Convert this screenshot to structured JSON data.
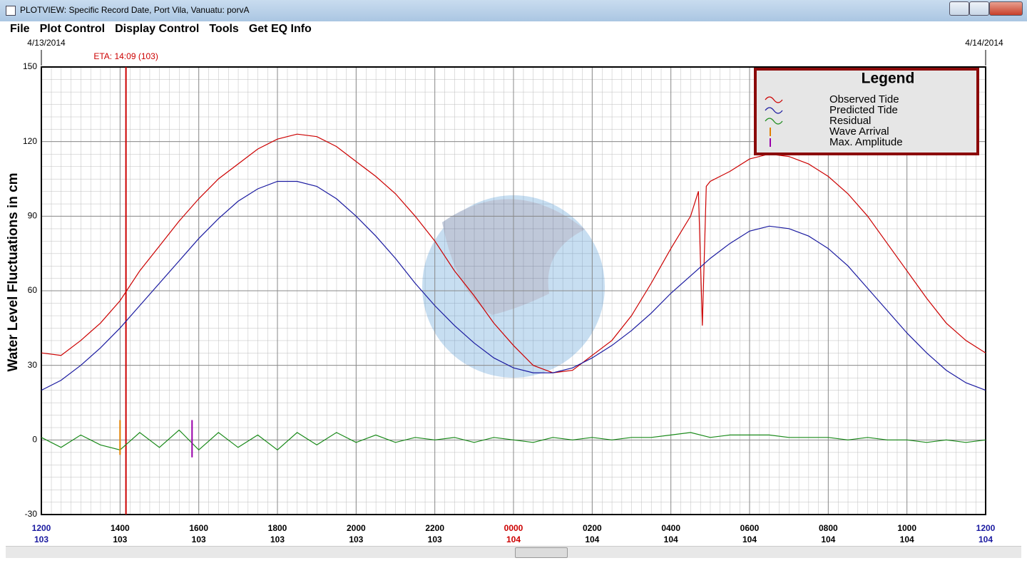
{
  "window": {
    "title": "PLOTVIEW: Specific Record Date, Port Vila, Vanuatu: porvA"
  },
  "menu": [
    "File",
    "Plot Control",
    "Display Control",
    "Tools",
    "Get EQ Info"
  ],
  "chart_data": {
    "type": "line",
    "y_label": "Water Level Fluctuations in cm",
    "date_left": "4/13/2014",
    "date_right": "4/14/2014",
    "annotation": {
      "text": "ETA: 14:09 (103)",
      "x": 2.15,
      "color": "#cc0000"
    },
    "xlim": [
      0,
      24
    ],
    "xticks": [
      {
        "value": 0,
        "label": "1200"
      },
      {
        "value": 2,
        "label": "1400"
      },
      {
        "value": 4,
        "label": "1600"
      },
      {
        "value": 6,
        "label": "1800"
      },
      {
        "value": 8,
        "label": "2000"
      },
      {
        "value": 10,
        "label": "2200"
      },
      {
        "value": 12,
        "label": "0000"
      },
      {
        "value": 14,
        "label": "0200"
      },
      {
        "value": 16,
        "label": "0400"
      },
      {
        "value": 18,
        "label": "0600"
      },
      {
        "value": 20,
        "label": "0800"
      },
      {
        "value": 22,
        "label": "1000"
      },
      {
        "value": 24,
        "label": "1200"
      }
    ],
    "xtick_days": [
      "103",
      "103",
      "103",
      "103",
      "103",
      "103",
      "104",
      "104",
      "104",
      "104",
      "104",
      "104",
      "104"
    ],
    "xtick_colors": [
      "#1a1aa0",
      "#000000",
      "#000000",
      "#000000",
      "#000000",
      "#000000",
      "#cc0000",
      "#000000",
      "#000000",
      "#000000",
      "#000000",
      "#000000",
      "#1a1aa0"
    ],
    "ylim": [
      -30,
      150
    ],
    "yticks": [
      -30,
      0,
      30,
      60,
      90,
      120,
      150
    ],
    "grid": true,
    "x": [
      0,
      0.5,
      1,
      1.5,
      2,
      2.5,
      3,
      3.5,
      4,
      4.5,
      5,
      5.5,
      6,
      6.5,
      7,
      7.5,
      8,
      8.5,
      9,
      9.5,
      10,
      10.5,
      11,
      11.5,
      12,
      12.5,
      13,
      13.5,
      14,
      14.5,
      15,
      15.5,
      16,
      16.5,
      17,
      17.5,
      18,
      18.5,
      19,
      19.5,
      20,
      20.5,
      21,
      21.5,
      22,
      22.5,
      23,
      23.5,
      24
    ],
    "series": [
      {
        "name": "Observed Tide",
        "color": "#cc0000",
        "x": [
          0,
          0.5,
          1,
          1.5,
          2,
          2.5,
          3,
          3.5,
          4,
          4.5,
          5,
          5.5,
          6,
          6.5,
          7,
          7.5,
          8,
          8.5,
          9,
          9.5,
          10,
          10.5,
          11,
          11.5,
          12,
          12.5,
          13,
          13.5,
          14,
          14.5,
          15,
          15.5,
          16,
          16.5,
          16.7,
          16.8,
          16.9,
          17,
          17.5,
          18,
          18.5,
          19,
          19.5,
          20,
          20.5,
          21,
          21.5,
          22,
          22.5,
          23,
          23.5,
          24
        ],
        "values": [
          35,
          34,
          40,
          47,
          56,
          68,
          78,
          88,
          97,
          105,
          111,
          117,
          121,
          123,
          122,
          118,
          112,
          106,
          99,
          90,
          80,
          68,
          58,
          47,
          38,
          30,
          27,
          28,
          34,
          40,
          50,
          63,
          77,
          90,
          100,
          46,
          102,
          104,
          108,
          113,
          115,
          114,
          111,
          106,
          99,
          90,
          79,
          68,
          57,
          47,
          40,
          35
        ]
      },
      {
        "name": "Predicted Tide",
        "color": "#1a1aa0",
        "values": [
          20,
          24,
          30,
          37,
          45,
          54,
          63,
          72,
          81,
          89,
          96,
          101,
          104,
          104,
          102,
          97,
          90,
          82,
          73,
          63,
          54,
          46,
          39,
          33,
          29,
          27,
          27,
          29,
          33,
          38,
          44,
          51,
          59,
          66,
          73,
          79,
          84,
          86,
          85,
          82,
          77,
          70,
          61,
          52,
          43,
          35,
          28,
          23,
          20
        ]
      },
      {
        "name": "Residual",
        "color": "#1a8a1a",
        "values": [
          1,
          -3,
          2,
          -2,
          -4,
          3,
          -3,
          4,
          -4,
          3,
          -3,
          2,
          -4,
          3,
          -2,
          3,
          -1,
          2,
          -1,
          1,
          0,
          1,
          -1,
          1,
          0,
          -1,
          1,
          0,
          1,
          0,
          1,
          1,
          2,
          3,
          1,
          2,
          2,
          2,
          1,
          1,
          1,
          0,
          1,
          0,
          0,
          -1,
          0,
          -1,
          0
        ]
      }
    ],
    "markers": [
      {
        "name": "Wave Arrival",
        "color": "#e08000",
        "x": 2.0,
        "values": [
          -6,
          8
        ]
      },
      {
        "name": "Max. Amplitude",
        "color": "#9900aa",
        "x": 3.83,
        "values": [
          -7,
          8
        ]
      }
    ],
    "legend_title": "Legend"
  }
}
